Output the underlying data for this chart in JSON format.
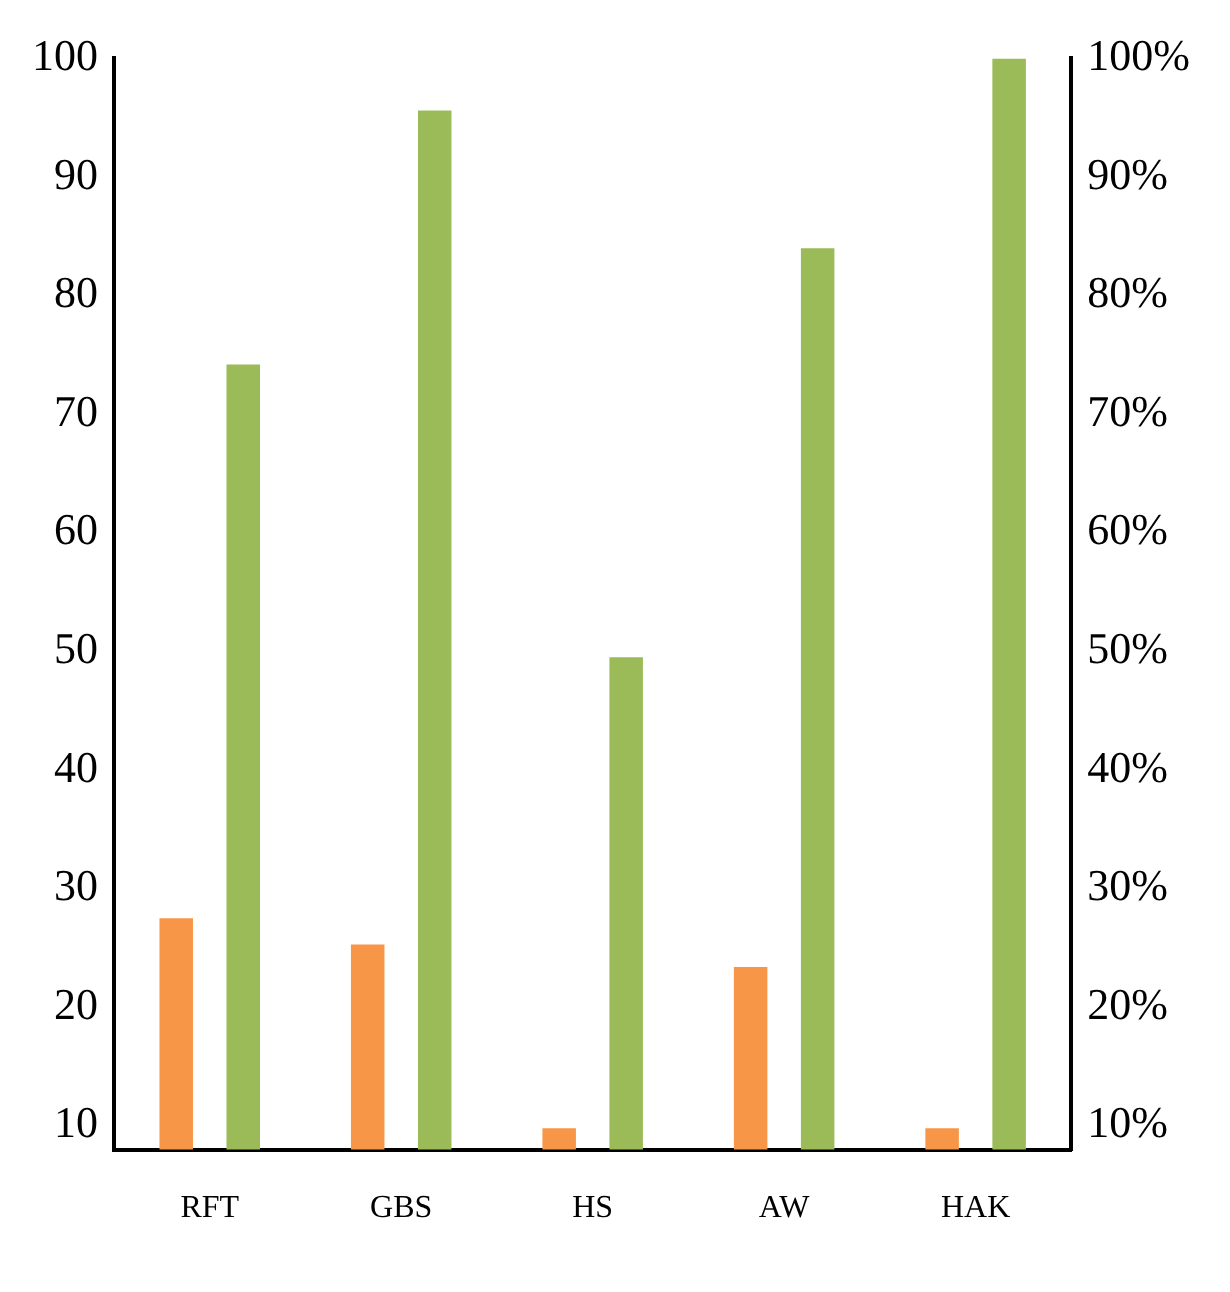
{
  "chart_data": {
    "type": "bar",
    "categories": [
      "RFT",
      "GBS",
      "HS",
      "AW",
      "HAK"
    ],
    "series": [
      {
        "color": "#f79646",
        "values": [
          27.5,
          25.3,
          9.8,
          23.4,
          9.8
        ]
      },
      {
        "color": "#9bbb59",
        "values": [
          74.2,
          95.6,
          49.5,
          84,
          100
        ]
      }
    ],
    "ylim": [
      8,
      100
    ],
    "yticks": [
      10,
      20,
      30,
      40,
      50,
      60,
      70,
      80,
      90,
      100
    ],
    "y2lim": [
      8,
      100
    ],
    "y2ticks": [
      {
        "value": 10,
        "label": "10%"
      },
      {
        "value": 20,
        "label": "20%"
      },
      {
        "value": 30,
        "label": "30%"
      },
      {
        "value": 40,
        "label": "40%"
      },
      {
        "value": 50,
        "label": "50%"
      },
      {
        "value": 60,
        "label": "60%"
      },
      {
        "value": 70,
        "label": "70%"
      },
      {
        "value": 80,
        "label": "80%"
      },
      {
        "value": 90,
        "label": "90%"
      },
      {
        "value": 100,
        "label": "100%"
      }
    ],
    "grid": false,
    "legend": false
  }
}
